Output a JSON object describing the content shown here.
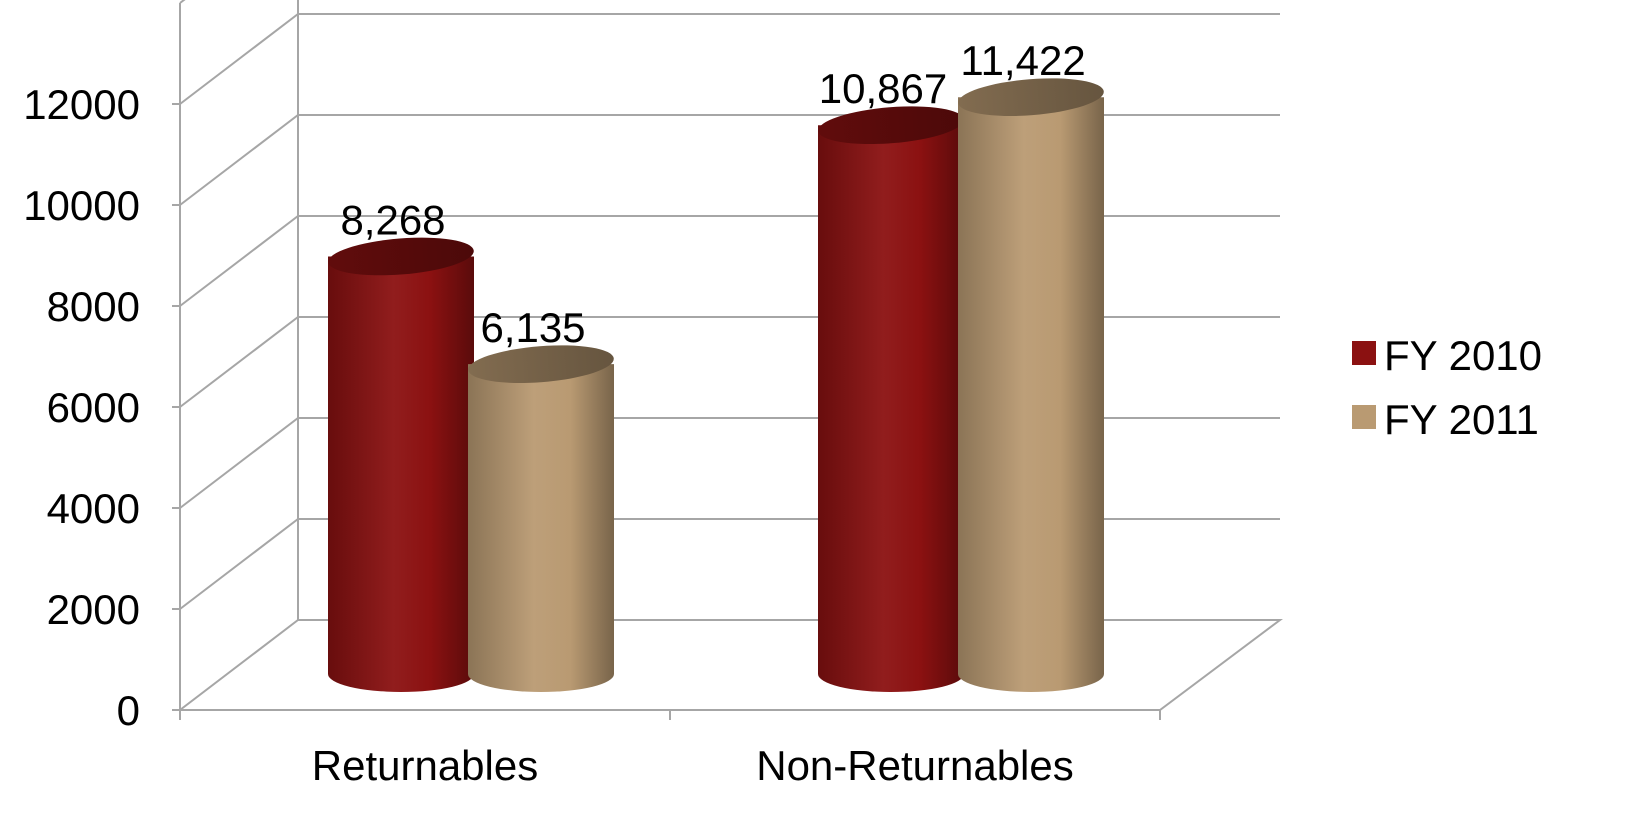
{
  "chart_data": {
    "type": "bar",
    "style": "3d-cylinder",
    "categories": [
      "Returnables",
      "Non-Returnables"
    ],
    "series": [
      {
        "name": "FY 2010",
        "values": [
          8268,
          10867
        ],
        "labels": [
          "8,268",
          "10,867"
        ],
        "color": "#8b1111"
      },
      {
        "name": "FY 2011",
        "values": [
          6135,
          11422
        ],
        "labels": [
          "6,135",
          "11,422"
        ],
        "color": "#b99a72"
      }
    ],
    "y_ticks": [
      "0",
      "2000",
      "4000",
      "6000",
      "8000",
      "10000",
      "12000"
    ],
    "ylim": [
      0,
      12000
    ],
    "grid": true,
    "legend": "right"
  }
}
